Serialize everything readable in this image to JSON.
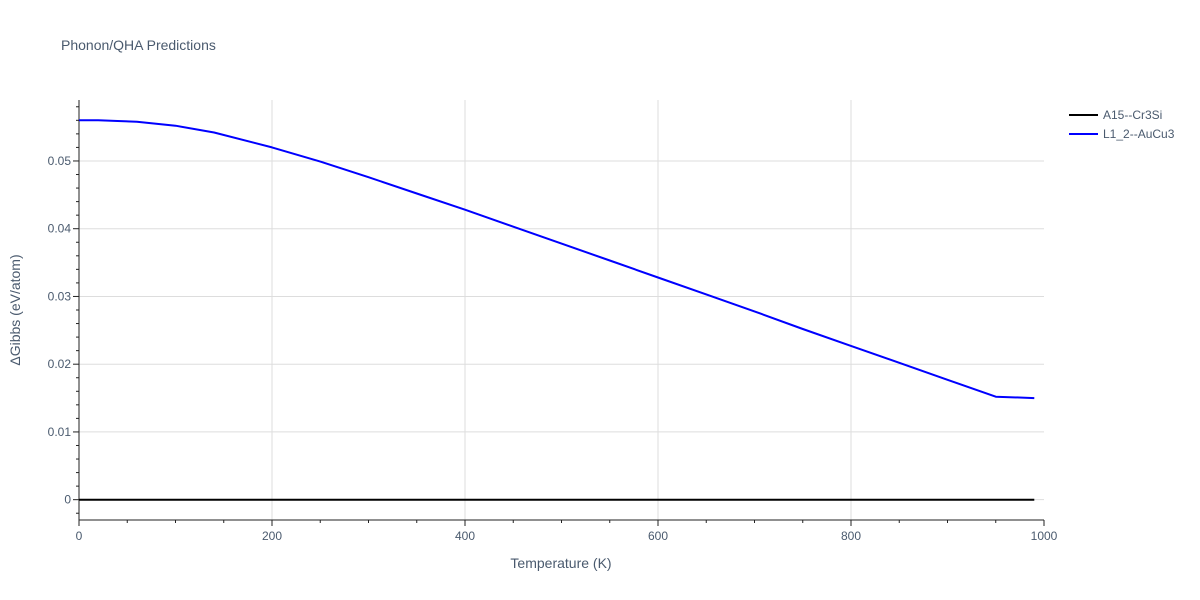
{
  "chart_data": {
    "type": "line",
    "title": "Phonon/QHA Predictions",
    "xlabel": "Temperature (K)",
    "ylabel": "ΔGibbs (eV/atom)",
    "xlim": [
      0,
      1000
    ],
    "ylim": [
      -0.003,
      0.059
    ],
    "xticks": [
      0,
      200,
      400,
      600,
      800,
      1000
    ],
    "xtick_labels": [
      "0",
      "200",
      "400",
      "600",
      "800",
      "1000"
    ],
    "yticks": [
      0,
      0.01,
      0.02,
      0.03,
      0.04,
      0.05
    ],
    "ytick_labels": [
      "0",
      "0.01",
      "0.02",
      "0.03",
      "0.04",
      "0.05"
    ],
    "grid": true,
    "legend_position": "top-right outside",
    "series": [
      {
        "name": "A15--Cr3Si",
        "color": "#000000",
        "x": [
          0,
          990
        ],
        "y": [
          0,
          0
        ]
      },
      {
        "name": "L1_2--AuCu3",
        "color": "#0000ff",
        "x": [
          0,
          20,
          40,
          60,
          80,
          100,
          140,
          200,
          250,
          300,
          350,
          400,
          450,
          500,
          550,
          600,
          650,
          700,
          750,
          800,
          850,
          900,
          950,
          990
        ],
        "y": [
          0.056,
          0.056,
          0.0559,
          0.0558,
          0.0555,
          0.0552,
          0.0542,
          0.052,
          0.0499,
          0.0476,
          0.0452,
          0.0428,
          0.0403,
          0.0378,
          0.0353,
          0.0328,
          0.0303,
          0.0278,
          0.0252,
          0.0227,
          0.0202,
          0.0177,
          0.0152,
          0.015
        ]
      }
    ]
  }
}
